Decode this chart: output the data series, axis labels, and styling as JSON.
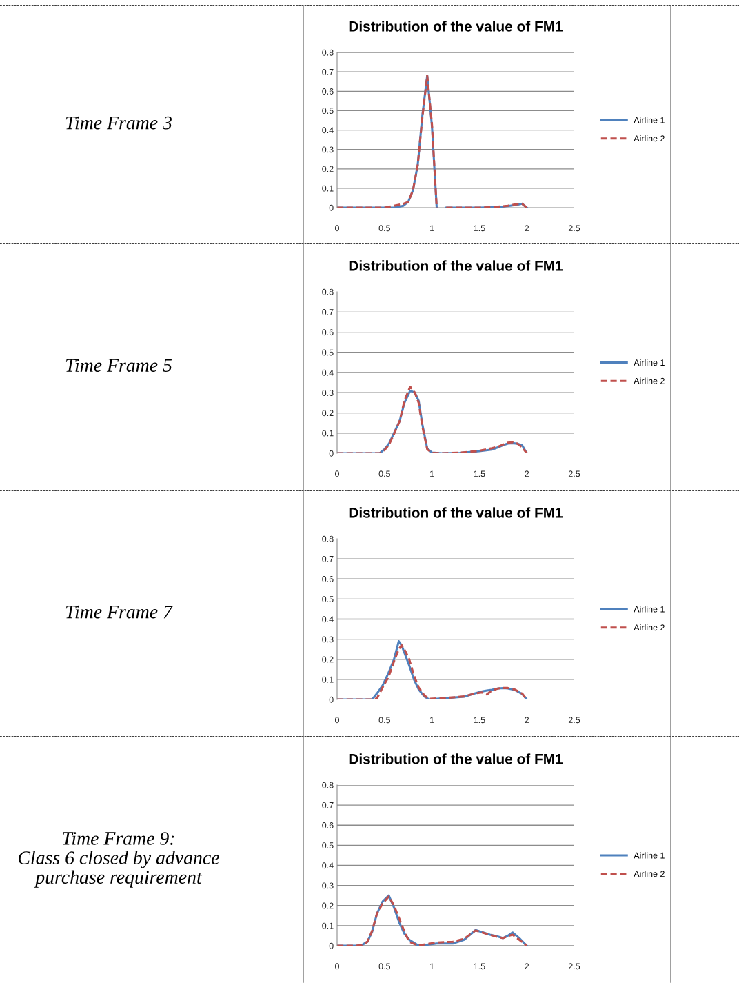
{
  "chart_data": [
    {
      "type": "line",
      "title": "Distribution of the value of FM1",
      "annotations": [
        "Time Frame 3"
      ],
      "xlim": [
        0,
        2.5
      ],
      "xticks": [
        0,
        0.5,
        1,
        1.5,
        2,
        2.5
      ],
      "ylim": [
        0,
        0.8
      ],
      "yticks": [
        0,
        0.1,
        0.2,
        0.3,
        0.4,
        0.5,
        0.6,
        0.7,
        0.8
      ],
      "grid": "y",
      "legend": "right",
      "x": [
        0,
        0.5,
        0.6,
        0.7,
        0.75,
        0.8,
        0.85,
        0.9,
        0.95,
        1.0,
        1.05,
        1.1,
        1.15,
        1.5,
        1.7,
        1.8,
        1.9,
        1.95,
        2.0
      ],
      "series": [
        {
          "name": "Airline 1",
          "color": "#4f81bd",
          "line_style": "solid",
          "values": [
            0,
            0,
            0,
            0.01,
            0.03,
            0.09,
            0.22,
            0.48,
            0.68,
            0.42,
            0,
            null,
            0,
            0,
            0.003,
            0.008,
            0.015,
            0.02,
            0
          ]
        },
        {
          "name": "Airline 2",
          "color": "#c0504d",
          "line_style": "dashed",
          "values": [
            0,
            0,
            0.01,
            0.02,
            0.03,
            0.09,
            0.22,
            0.47,
            0.68,
            0.43,
            0,
            null,
            0,
            0,
            0.005,
            0.01,
            0.018,
            0.02,
            0
          ]
        }
      ]
    },
    {
      "type": "line",
      "title": "Distribution of the value of FM1",
      "annotations": [
        "Time Frame 5"
      ],
      "xlim": [
        0,
        2.5
      ],
      "xticks": [
        0,
        0.5,
        1,
        1.5,
        2,
        2.5
      ],
      "ylim": [
        0,
        0.8
      ],
      "yticks": [
        0,
        0.1,
        0.2,
        0.3,
        0.4,
        0.5,
        0.6,
        0.7,
        0.8
      ],
      "grid": "y",
      "legend": "right",
      "x": [
        0,
        0.4,
        0.45,
        0.5,
        0.55,
        0.6,
        0.66,
        0.71,
        0.77,
        0.82,
        0.86,
        0.9,
        0.95,
        1.0,
        1.1,
        1.3,
        1.5,
        1.63,
        1.7,
        1.75,
        1.8,
        1.85,
        1.9,
        1.95,
        2.0
      ],
      "series": [
        {
          "name": "Airline 1",
          "color": "#4f81bd",
          "line_style": "solid",
          "values": [
            0,
            0,
            0,
            0.02,
            0.05,
            0.1,
            0.16,
            0.25,
            0.31,
            0.3,
            0.26,
            0.14,
            0.024,
            0.003,
            0,
            0.002,
            0.01,
            0.018,
            0.03,
            0.04,
            0.048,
            0.05,
            0.047,
            0.04,
            0
          ]
        },
        {
          "name": "Airline 2",
          "color": "#c0504d",
          "line_style": "dashed",
          "values": [
            0,
            0,
            0,
            0.015,
            0.045,
            0.095,
            0.16,
            0.26,
            0.33,
            0.3,
            0.25,
            0.13,
            0.02,
            0.002,
            0,
            0.003,
            0.012,
            0.025,
            0.033,
            0.043,
            0.052,
            0.055,
            0.048,
            0.03,
            0
          ]
        }
      ]
    },
    {
      "type": "line",
      "title": "Distribution of the value of FM1",
      "annotations": [
        "Time Frame 7"
      ],
      "xlim": [
        0,
        2.5
      ],
      "xticks": [
        0,
        0.5,
        1,
        1.5,
        2,
        2.5
      ],
      "ylim": [
        0,
        0.8
      ],
      "yticks": [
        0,
        0.1,
        0.2,
        0.3,
        0.4,
        0.5,
        0.6,
        0.7,
        0.8
      ],
      "grid": "y",
      "legend": "right",
      "x": [
        0,
        0.3,
        0.37,
        0.42,
        0.48,
        0.54,
        0.6,
        0.65,
        0.68,
        0.72,
        0.76,
        0.81,
        0.86,
        0.92,
        0.97,
        1.1,
        1.34,
        1.45,
        1.53,
        1.58,
        1.63,
        1.7,
        1.75,
        1.8,
        1.87,
        1.95,
        2.0
      ],
      "series": [
        {
          "name": "Airline 1",
          "color": "#4f81bd",
          "line_style": "solid",
          "values": [
            0,
            0,
            0,
            0.03,
            0.07,
            0.13,
            0.2,
            0.29,
            0.27,
            0.22,
            0.17,
            0.1,
            0.05,
            0.015,
            0,
            0.005,
            0.014,
            0.03,
            0.04,
            0.045,
            0.048,
            0.055,
            0.057,
            0.055,
            0.048,
            0.028,
            0
          ]
        },
        {
          "name": "Airline 2",
          "color": "#c0504d",
          "line_style": "dashed",
          "values": [
            0,
            0,
            0,
            0.005,
            0.06,
            0.11,
            0.19,
            0.25,
            0.27,
            0.24,
            0.2,
            0.12,
            0.06,
            0.02,
            0.003,
            0.006,
            0.015,
            0.03,
            0.035,
            0.025,
            0.045,
            0.055,
            0.057,
            0.057,
            0.05,
            0.03,
            0
          ]
        }
      ]
    },
    {
      "type": "line",
      "title": "Distribution of the value of FM1",
      "annotations": [
        "Time Frame 9:\nClass 6 closed by advance\npurchase requirement"
      ],
      "xlim": [
        0,
        2.5
      ],
      "xticks": [
        0,
        0.5,
        1,
        1.5,
        2,
        2.5
      ],
      "ylim": [
        0,
        0.8
      ],
      "yticks": [
        0,
        0.1,
        0.2,
        0.3,
        0.4,
        0.5,
        0.6,
        0.7,
        0.8
      ],
      "grid": "y",
      "legend": "right",
      "x": [
        0,
        0.2,
        0.26,
        0.32,
        0.37,
        0.42,
        0.48,
        0.545,
        0.6,
        0.66,
        0.71,
        0.76,
        0.85,
        0.95,
        1.05,
        1.22,
        1.34,
        1.46,
        1.53,
        1.61,
        1.68,
        1.75,
        1.8,
        1.85,
        1.92,
        2.0
      ],
      "series": [
        {
          "name": "Airline 1",
          "color": "#4f81bd",
          "line_style": "solid",
          "values": [
            0,
            0,
            0.003,
            0.02,
            0.07,
            0.16,
            0.22,
            0.25,
            0.19,
            0.11,
            0.06,
            0.03,
            0.003,
            0.005,
            0.011,
            0.011,
            0.03,
            0.078,
            0.068,
            0.055,
            0.048,
            0.038,
            0.05,
            0.066,
            0.038,
            0
          ]
        },
        {
          "name": "Airline 2",
          "color": "#c0504d",
          "line_style": "dashed",
          "values": [
            0,
            0,
            0.003,
            0.02,
            0.075,
            0.16,
            0.21,
            0.245,
            0.2,
            0.13,
            0.07,
            0.02,
            0.002,
            0.008,
            0.016,
            0.02,
            0.035,
            0.076,
            0.066,
            0.055,
            0.045,
            0.038,
            0.048,
            0.055,
            0.03,
            0
          ]
        }
      ]
    }
  ]
}
